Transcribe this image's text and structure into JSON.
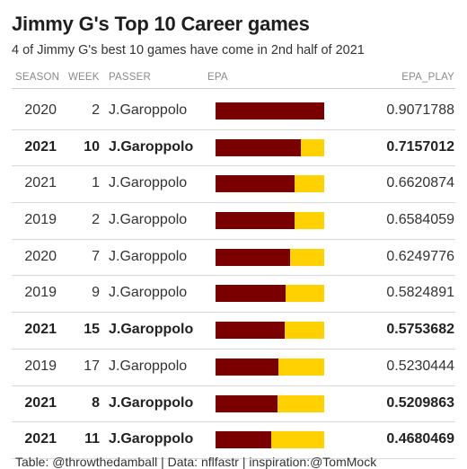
{
  "title": "Jimmy G's Top 10 Career games",
  "subtitle": "4 of Jimmy G's best 10 games have come in 2nd half of 2021",
  "columns": {
    "season": "SEASON",
    "week": "WEEK",
    "passer": "PASSER",
    "epa": "EPA",
    "epa_play": "EPA_PLAY"
  },
  "footer": "Table: @throwthedamball | Data: nflfastr | inspiration:@TomMock",
  "colors": {
    "bar": "#7A0000",
    "track": "#FFD100",
    "rule": "#d9d9d9"
  },
  "chart_data": {
    "type": "table",
    "bar_column": "EPA",
    "bar_max": 0.9071788,
    "rows": [
      {
        "season": "2020",
        "week": "2",
        "passer": "J.Garoppolo",
        "epa_play": 0.9071788,
        "epa_play_text": "0.9071788",
        "bold": false
      },
      {
        "season": "2021",
        "week": "10",
        "passer": "J.Garoppolo",
        "epa_play": 0.7157012,
        "epa_play_text": "0.7157012",
        "bold": true
      },
      {
        "season": "2021",
        "week": "1",
        "passer": "J.Garoppolo",
        "epa_play": 0.6620874,
        "epa_play_text": "0.6620874",
        "bold": false
      },
      {
        "season": "2019",
        "week": "2",
        "passer": "J.Garoppolo",
        "epa_play": 0.6584059,
        "epa_play_text": "0.6584059",
        "bold": false
      },
      {
        "season": "2020",
        "week": "7",
        "passer": "J.Garoppolo",
        "epa_play": 0.6249776,
        "epa_play_text": "0.6249776",
        "bold": false
      },
      {
        "season": "2019",
        "week": "9",
        "passer": "J.Garoppolo",
        "epa_play": 0.5824891,
        "epa_play_text": "0.5824891",
        "bold": false
      },
      {
        "season": "2021",
        "week": "15",
        "passer": "J.Garoppolo",
        "epa_play": 0.5753682,
        "epa_play_text": "0.5753682",
        "bold": true
      },
      {
        "season": "2019",
        "week": "17",
        "passer": "J.Garoppolo",
        "epa_play": 0.5230444,
        "epa_play_text": "0.5230444",
        "bold": false
      },
      {
        "season": "2021",
        "week": "8",
        "passer": "J.Garoppolo",
        "epa_play": 0.5209863,
        "epa_play_text": "0.5209863",
        "bold": true
      },
      {
        "season": "2021",
        "week": "11",
        "passer": "J.Garoppolo",
        "epa_play": 0.4680469,
        "epa_play_text": "0.4680469",
        "bold": true
      }
    ]
  }
}
